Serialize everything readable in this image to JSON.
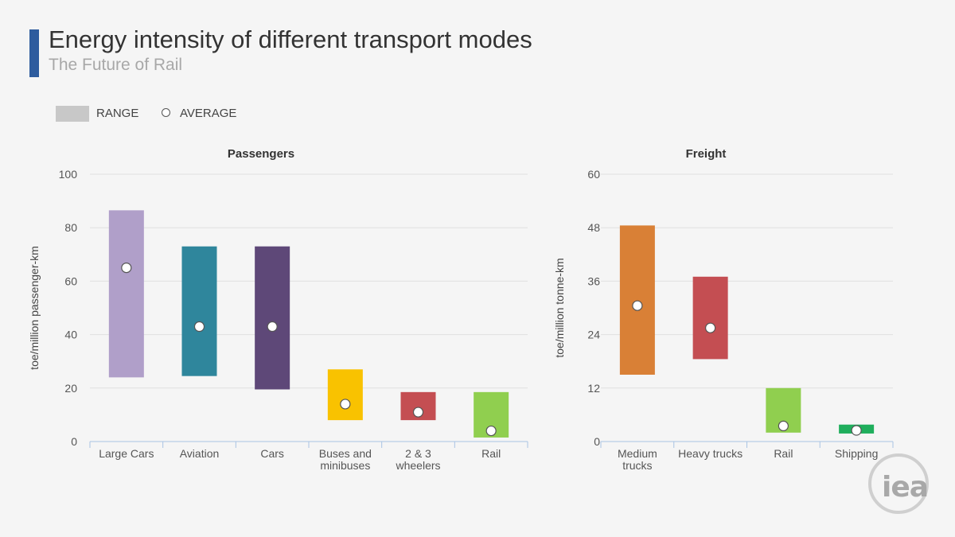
{
  "header": {
    "title": "Energy intensity of different transport modes",
    "subtitle": "The Future of Rail"
  },
  "legend": {
    "range_label": "RANGE",
    "average_label": "AVERAGE"
  },
  "colors": {
    "title_accent": "#2e5c9e",
    "range_swatch": "#c8c8c8"
  },
  "logo": {
    "text": "iea"
  },
  "chart_data": [
    {
      "type": "range",
      "title": "Passengers",
      "ylabel": "toe/million passenger-km",
      "ylim": [
        0,
        100
      ],
      "yticks": [
        0,
        20,
        40,
        60,
        80,
        100
      ],
      "grid": true,
      "categories": [
        {
          "label": [
            "Large Cars"
          ],
          "min": 24,
          "max": 86.5,
          "avg": 65,
          "color": "#b09fc9"
        },
        {
          "label": [
            "Aviation"
          ],
          "min": 24.5,
          "max": 73,
          "avg": 43,
          "color": "#2f869c"
        },
        {
          "label": [
            "Cars"
          ],
          "min": 19.5,
          "max": 73,
          "avg": 43,
          "color": "#5e4878"
        },
        {
          "label": [
            "Buses and",
            "minibuses"
          ],
          "min": 8,
          "max": 27,
          "avg": 14,
          "color": "#f9c200"
        },
        {
          "label": [
            "2 & 3",
            "wheelers"
          ],
          "min": 8,
          "max": 18.5,
          "avg": 11,
          "color": "#c44e52"
        },
        {
          "label": [
            "Rail"
          ],
          "min": 1.5,
          "max": 18.5,
          "avg": 4,
          "color": "#90cf4f"
        }
      ]
    },
    {
      "type": "range",
      "title": "Freight",
      "ylabel": "toe/million tonne-km",
      "ylim": [
        0,
        60
      ],
      "yticks": [
        0,
        12,
        24,
        36,
        48,
        60
      ],
      "grid": true,
      "categories": [
        {
          "label": [
            "Medium",
            "trucks"
          ],
          "min": 15,
          "max": 48.5,
          "avg": 30.5,
          "color": "#d98036"
        },
        {
          "label": [
            "Heavy trucks"
          ],
          "min": 18.5,
          "max": 37,
          "avg": 25.5,
          "color": "#c44e52"
        },
        {
          "label": [
            "Rail"
          ],
          "min": 2,
          "max": 12,
          "avg": 3.5,
          "color": "#90cf4f"
        },
        {
          "label": [
            "Shipping"
          ],
          "min": 1.8,
          "max": 3.8,
          "avg": 2.5,
          "color": "#1fae5c"
        }
      ]
    }
  ]
}
